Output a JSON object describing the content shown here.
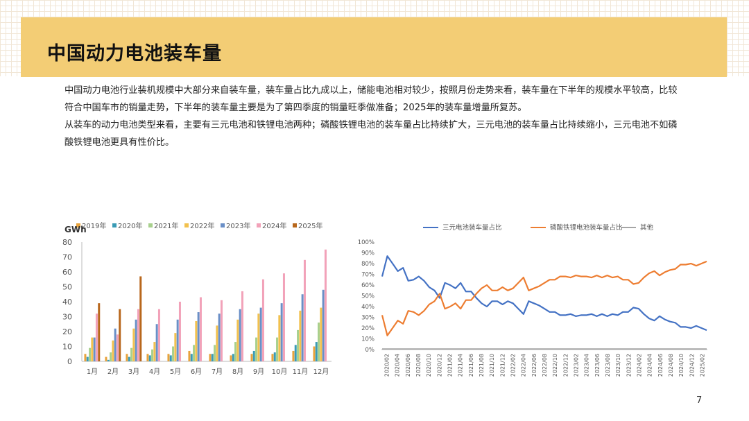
{
  "header": {
    "title": "中国动力电池装车量"
  },
  "description": {
    "p1": "中国动力电池行业装机规模中大部分来自装车量，装车量占比九成以上，储能电池相对较少，按照月份走势来看，装车量在下半年的规模水平较高，比较符合中国车市的销量走势，下半年的装车量主要是为了第四季度的销量旺季做准备；2025年的装车量增量所复苏。",
    "p2": "从装车的动力电池类型来看，主要有三元电池和铁锂电池两种；磷酸铁锂电池的装车量占比持续扩大，三元电池的装车量占比持续缩小，三元电池不如磷酸铁锂电池更具有性价比。"
  },
  "page_number": "7",
  "chart_data": [
    {
      "type": "bar",
      "ylabel": "GWh",
      "ylim": [
        0,
        80
      ],
      "yticks": [
        0,
        10,
        20,
        30,
        40,
        50,
        60,
        70,
        80
      ],
      "categories": [
        "1月",
        "2月",
        "3月",
        "4月",
        "5月",
        "6月",
        "7月",
        "8月",
        "9月",
        "10月",
        "11月",
        "12月"
      ],
      "series": [
        {
          "name": "2019年",
          "color": "#e8a33d",
          "values": [
            5,
            3,
            5,
            5,
            5,
            7,
            5,
            4,
            5,
            5,
            7,
            10
          ]
        },
        {
          "name": "2020年",
          "color": "#3a9bb5",
          "values": [
            3,
            1,
            3,
            4,
            4,
            5,
            5,
            5,
            7,
            6,
            11,
            13
          ]
        },
        {
          "name": "2021年",
          "color": "#a8d08d",
          "values": [
            9,
            6,
            9,
            8,
            10,
            11,
            11,
            13,
            16,
            16,
            21,
            26
          ]
        },
        {
          "name": "2022年",
          "color": "#f2c14e",
          "values": [
            16,
            14,
            22,
            13,
            19,
            27,
            24,
            28,
            32,
            31,
            34,
            36
          ]
        },
        {
          "name": "2023年",
          "color": "#6a8fc7",
          "values": [
            16,
            22,
            28,
            25,
            28,
            33,
            32,
            35,
            36,
            39,
            45,
            48
          ]
        },
        {
          "name": "2024年",
          "color": "#f2a2b9",
          "values": [
            32,
            18,
            35,
            35,
            40,
            43,
            41,
            47,
            55,
            59,
            68,
            75
          ]
        },
        {
          "name": "2025年",
          "color": "#b8671c",
          "values": [
            39,
            35,
            57,
            null,
            null,
            null,
            null,
            null,
            null,
            null,
            null,
            null
          ]
        }
      ]
    },
    {
      "type": "line",
      "ylim": [
        0,
        100
      ],
      "yticks": [
        "0%",
        "10%",
        "20%",
        "30%",
        "40%",
        "50%",
        "60%",
        "70%",
        "80%",
        "90%",
        "100%"
      ],
      "xticks": [
        "2020/02",
        "2020/04",
        "2020/06",
        "2020/08",
        "2020/10",
        "2020/12",
        "2021/02",
        "2021/04",
        "2021/06",
        "2021/08",
        "2021/10",
        "2021/12",
        "2022/02",
        "2022/04",
        "2022/06",
        "2022/08",
        "2022/10",
        "2022/12",
        "2023/02",
        "2023/04",
        "2023/06",
        "2023/08",
        "2023/10",
        "2023/12",
        "2024/02",
        "2024/04",
        "2024/06",
        "2024/08",
        "2024/10",
        "2024/12",
        "2025/02"
      ],
      "series": [
        {
          "name": "三元电池装车量占比",
          "color": "#4472c4",
          "values": [
            68,
            87,
            80,
            73,
            76,
            64,
            65,
            68,
            64,
            58,
            55,
            48,
            62,
            60,
            57,
            62,
            54,
            54,
            48,
            43,
            40,
            45,
            45,
            42,
            45,
            43,
            38,
            33,
            45,
            43,
            41,
            38,
            35,
            35,
            32,
            32,
            33,
            31,
            32,
            32,
            33,
            31,
            33,
            31,
            33,
            32,
            35,
            35,
            39,
            38,
            33,
            29,
            27,
            31,
            28,
            26,
            25,
            21,
            21,
            20,
            22,
            20,
            18
          ]
        },
        {
          "name": "磷酸铁锂电池装车量占比",
          "color": "#ed7d31",
          "values": [
            32,
            13,
            20,
            27,
            24,
            36,
            35,
            32,
            36,
            42,
            45,
            52,
            38,
            40,
            43,
            38,
            46,
            46,
            52,
            57,
            60,
            55,
            55,
            58,
            55,
            57,
            62,
            67,
            55,
            57,
            59,
            62,
            65,
            65,
            68,
            68,
            67,
            69,
            68,
            68,
            67,
            69,
            67,
            69,
            67,
            68,
            65,
            65,
            61,
            62,
            67,
            71,
            73,
            69,
            72,
            74,
            75,
            79,
            79,
            80,
            78,
            80,
            82
          ]
        },
        {
          "name": "其他",
          "color": "#a5a5a5",
          "values": [
            0.5,
            0.5,
            0.5,
            0.5,
            0.5,
            0.5,
            0.5,
            0.5,
            0.5,
            0.5,
            0.5,
            0.5,
            0.5,
            0.5,
            0.5,
            0.5,
            0.5,
            0.5,
            0.5,
            0.5,
            0.5,
            0.5,
            0.5,
            0.5,
            0.5,
            0.5,
            0.5,
            0.5,
            0.5,
            0.5,
            0.5,
            0.5,
            0.5,
            0.5,
            0.5,
            0.5,
            0.5,
            0.5,
            0.5,
            0.5,
            0.5,
            0.5,
            0.5,
            0.5,
            0.5,
            0.5,
            0.5,
            0.5,
            0.5,
            0.5,
            0.5,
            0.5,
            0.5,
            0.5,
            0.5,
            0.5,
            0.5,
            0.5,
            0.5,
            0.5,
            0.5,
            0.5,
            0.5
          ]
        }
      ]
    }
  ]
}
